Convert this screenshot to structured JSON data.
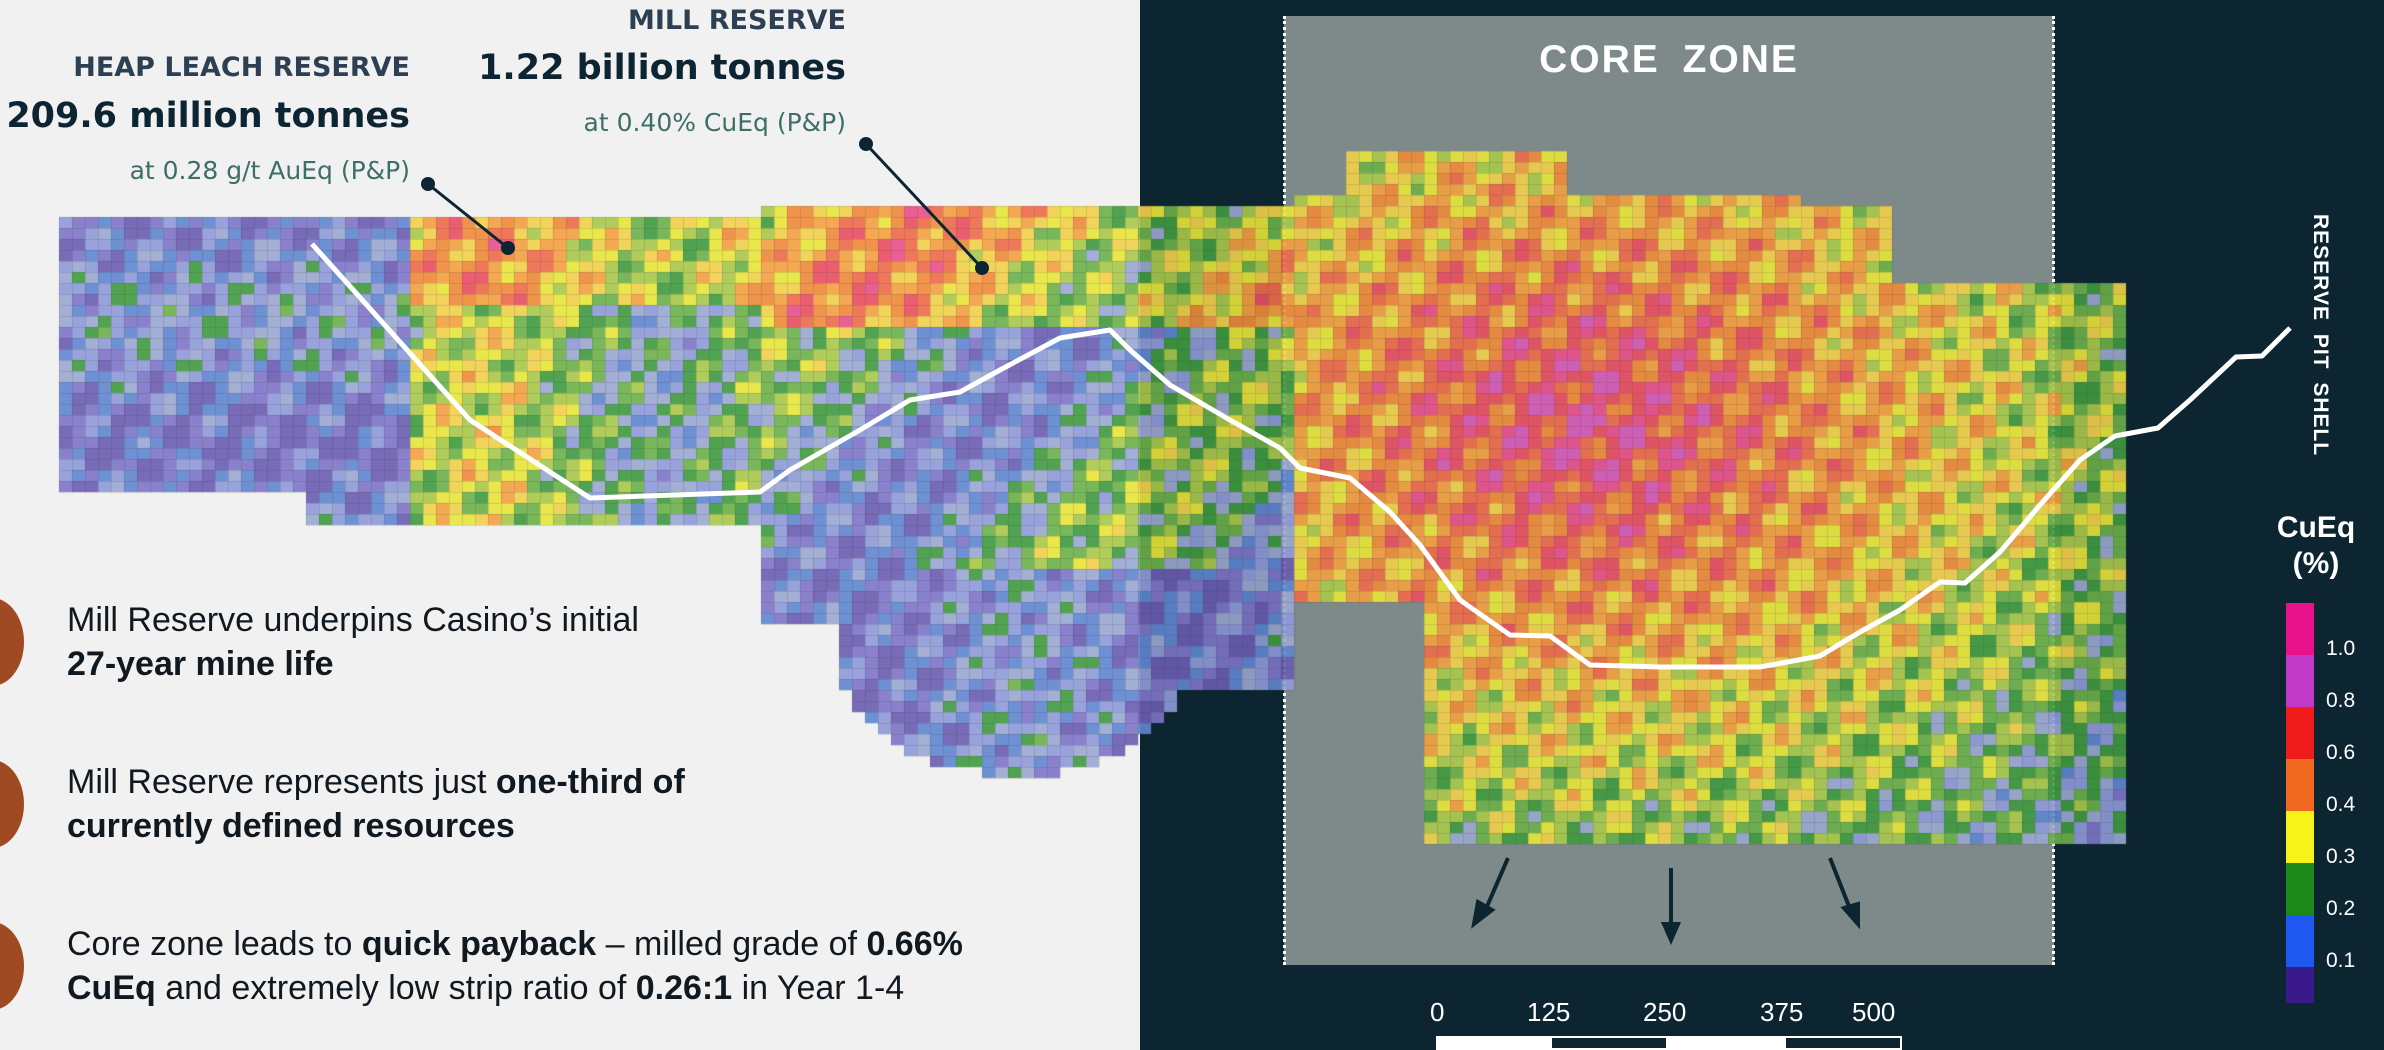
{
  "callouts": {
    "heap_leach": {
      "heading": "HEAP LEACH RESERVE",
      "tonnage": "209.6 million tonnes",
      "grade": "at 0.28 g/t AuEq (P&P)"
    },
    "mill": {
      "heading": "MILL RESERVE",
      "tonnage": "1.22 billion tonnes",
      "grade": "at 0.40% CuEq (P&P)"
    }
  },
  "bullets": [
    {
      "line1_parts": [
        "Mill Reserve underpins Casino’s initial"
      ],
      "line2_parts": [
        "27-year mine life"
      ]
    },
    {
      "line1_parts": [
        "Mill Reserve represents just ",
        "one-third of"
      ],
      "line2_parts": [
        "currently defined resources"
      ]
    },
    {
      "line1_parts": [
        "Core zone leads to ",
        "quick payback",
        " – milled grade of ",
        "0.66%"
      ],
      "line2_parts": [
        "CuEq",
        " and extremely low strip ratio of ",
        "0.26:1",
        " in Year 1-4"
      ]
    }
  ],
  "core_zone_label": "CORE  ZONE",
  "pit_shell_label": "RESERVE  PIT  SHELL",
  "legend": {
    "title_line1": "CuEq",
    "title_line2": "(%)",
    "ticks": [
      "1.0",
      "0.8",
      "0.6",
      "0.4",
      "0.3",
      "0.2",
      "0.1"
    ],
    "colors": [
      "#e8128a",
      "#c23bc8",
      "#f01b1b",
      "#f26a21",
      "#f7f21a",
      "#1b8a1b",
      "#1f58f0",
      "#3a1a8a"
    ]
  },
  "scale_bar": {
    "labels": [
      "0",
      "125",
      "250",
      "375",
      "500"
    ]
  },
  "colors": {
    "dark_panel": "#0c2531",
    "core_zone": "#7d8a89",
    "bullet": "#a04a23"
  }
}
